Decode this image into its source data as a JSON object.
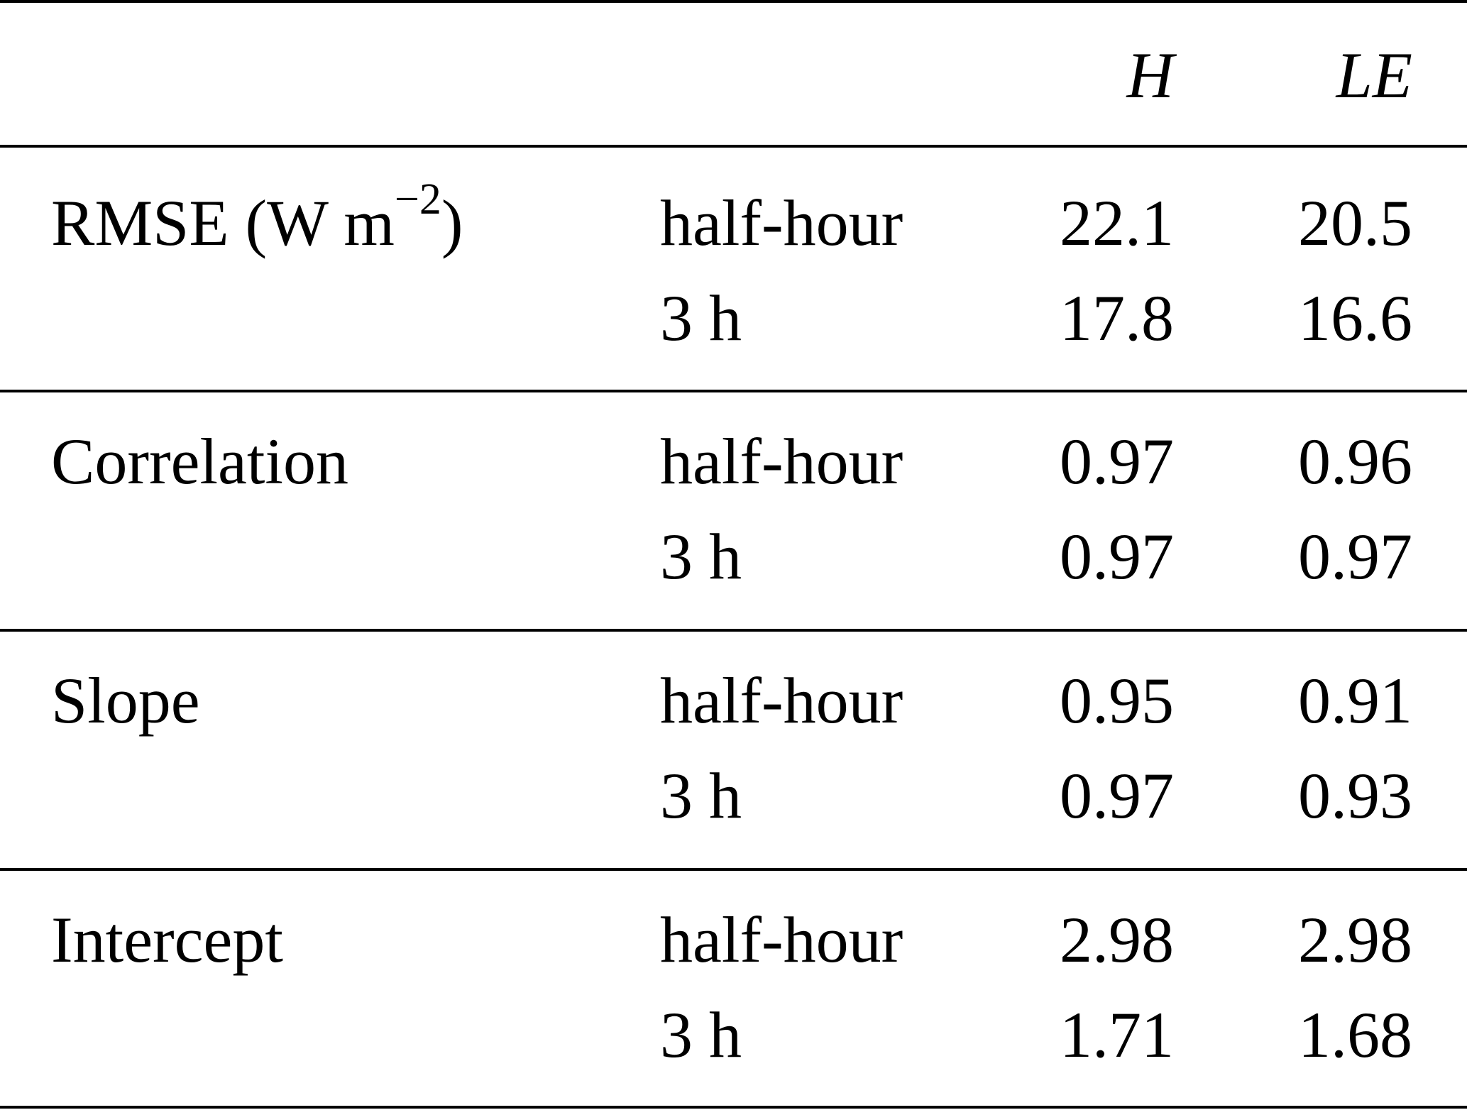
{
  "header": {
    "col_h": "H",
    "col_le": "LE"
  },
  "groups": [
    {
      "metric_base": "RMSE (W m",
      "metric_exp": "−2",
      "metric_close": ")",
      "rows": [
        {
          "period": "half-hour",
          "h": "22.1",
          "le": "20.5"
        },
        {
          "period": "3 h",
          "h": "17.8",
          "le": "16.6"
        }
      ]
    },
    {
      "metric": "Correlation",
      "rows": [
        {
          "period": "half-hour",
          "h": "0.97",
          "le": "0.96"
        },
        {
          "period": "3 h",
          "h": "0.97",
          "le": "0.97"
        }
      ]
    },
    {
      "metric": "Slope",
      "rows": [
        {
          "period": "half-hour",
          "h": "0.95",
          "le": "0.91"
        },
        {
          "period": "3 h",
          "h": "0.97",
          "le": "0.93"
        }
      ]
    },
    {
      "metric": "Intercept",
      "rows": [
        {
          "period": "half-hour",
          "h": "2.98",
          "le": "2.98"
        },
        {
          "period": "3 h",
          "h": "1.71",
          "le": "1.68"
        }
      ]
    }
  ]
}
